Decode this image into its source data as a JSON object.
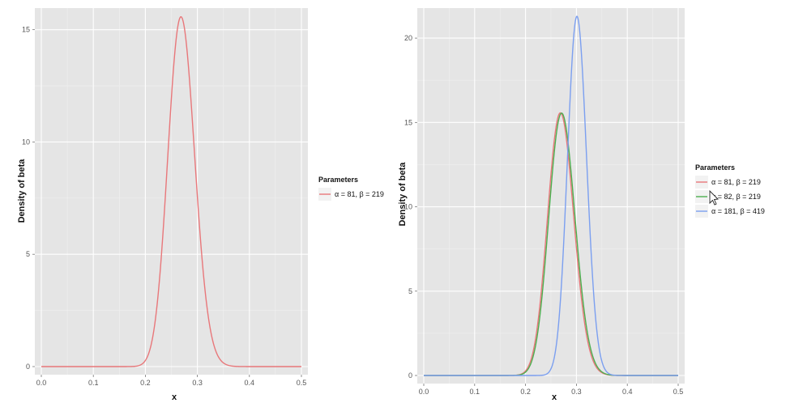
{
  "chart_data": [
    {
      "type": "line",
      "xlabel": "x",
      "ylabel": "Density of beta",
      "xlim": [
        0,
        0.5
      ],
      "ylim": [
        0,
        15.6
      ],
      "x_ticks": [
        "0.0",
        "0.1",
        "0.2",
        "0.3",
        "0.4",
        "0.5"
      ],
      "y_ticks": [
        "0",
        "5",
        "10",
        "15"
      ],
      "x_tick_values": [
        0,
        0.1,
        0.2,
        0.3,
        0.4,
        0.5
      ],
      "y_tick_values": [
        0,
        5,
        10,
        15
      ],
      "grid": true,
      "legend": {
        "title": "Parameters",
        "placement": "right"
      },
      "series": [
        {
          "name": "α = 81, β = 219",
          "alpha": 81,
          "beta": 219,
          "color": "#e8777a"
        }
      ]
    },
    {
      "type": "line",
      "xlabel": "x",
      "ylabel": "Density of beta",
      "xlim": [
        0,
        0.5
      ],
      "ylim": [
        0,
        21.3
      ],
      "x_ticks": [
        "0.0",
        "0.1",
        "0.2",
        "0.3",
        "0.4",
        "0.5"
      ],
      "y_ticks": [
        "0",
        "5",
        "10",
        "15",
        "20"
      ],
      "x_tick_values": [
        0,
        0.1,
        0.2,
        0.3,
        0.4,
        0.5
      ],
      "y_tick_values": [
        0,
        5,
        10,
        15,
        20
      ],
      "grid": true,
      "legend": {
        "title": "Parameters",
        "placement": "right"
      },
      "series": [
        {
          "name": "α = 81, β = 219",
          "alpha": 81,
          "beta": 219,
          "color": "#e8777a"
        },
        {
          "name": "α = 82, β = 219",
          "alpha": 82,
          "beta": 219,
          "color": "#4caf50"
        },
        {
          "name": "α = 181, β = 419",
          "alpha": 181,
          "beta": 419,
          "color": "#7b9ff0"
        }
      ]
    }
  ]
}
